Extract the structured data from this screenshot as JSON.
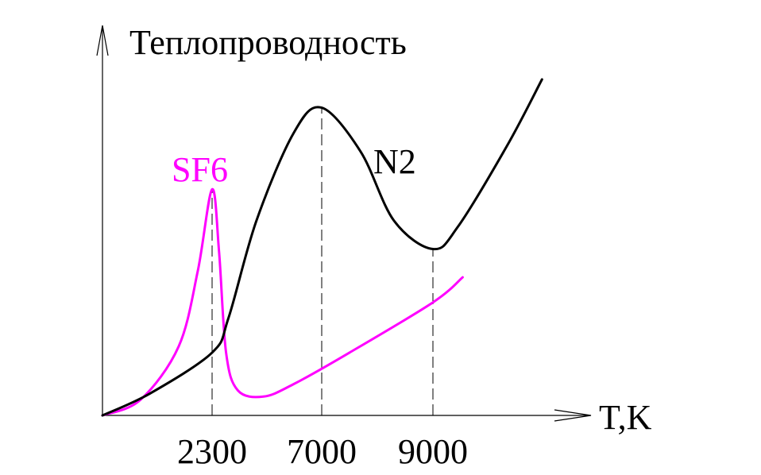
{
  "chart_data": {
    "type": "line",
    "ylabel": "Теплопроводность",
    "xlabel": "T,K",
    "x_ticks": [
      "2300",
      "7000",
      "9000"
    ],
    "colors": {
      "axis": "#000000",
      "N2": "#000000",
      "SF6": "#ff00ff",
      "guide": "#000000"
    },
    "series": [
      {
        "name": "SF6",
        "color": "#ff00ff",
        "x_label_index": 0,
        "points": [
          [
            0,
            0
          ],
          [
            800,
            0.05
          ],
          [
            1600,
            0.22
          ],
          [
            2000,
            0.46
          ],
          [
            2300,
            0.72
          ],
          [
            2600,
            0.52
          ],
          [
            2900,
            0.2
          ],
          [
            3400,
            0.08
          ],
          [
            4500,
            0.06
          ],
          [
            5800,
            0.1
          ],
          [
            7500,
            0.2
          ],
          [
            9000,
            0.36
          ],
          [
            9600,
            0.44
          ]
        ]
      },
      {
        "name": "N2",
        "color": "#000000",
        "x_label_index": 1,
        "points": [
          [
            0,
            0
          ],
          [
            1000,
            0.07
          ],
          [
            2300,
            0.2
          ],
          [
            3000,
            0.31
          ],
          [
            4200,
            0.62
          ],
          [
            5800,
            0.9
          ],
          [
            7000,
            0.98
          ],
          [
            7700,
            0.84
          ],
          [
            8300,
            0.62
          ],
          [
            9000,
            0.53
          ],
          [
            9500,
            0.6
          ],
          [
            10500,
            0.86
          ],
          [
            11200,
            1.07
          ]
        ]
      }
    ],
    "reference_lines": [
      {
        "x": 2300,
        "style": "dashed"
      },
      {
        "x": 7000,
        "style": "dashed"
      },
      {
        "x": 9000,
        "style": "dashed"
      }
    ],
    "xlim": [
      0,
      11500
    ],
    "ylim": [
      0,
      1.12
    ]
  }
}
